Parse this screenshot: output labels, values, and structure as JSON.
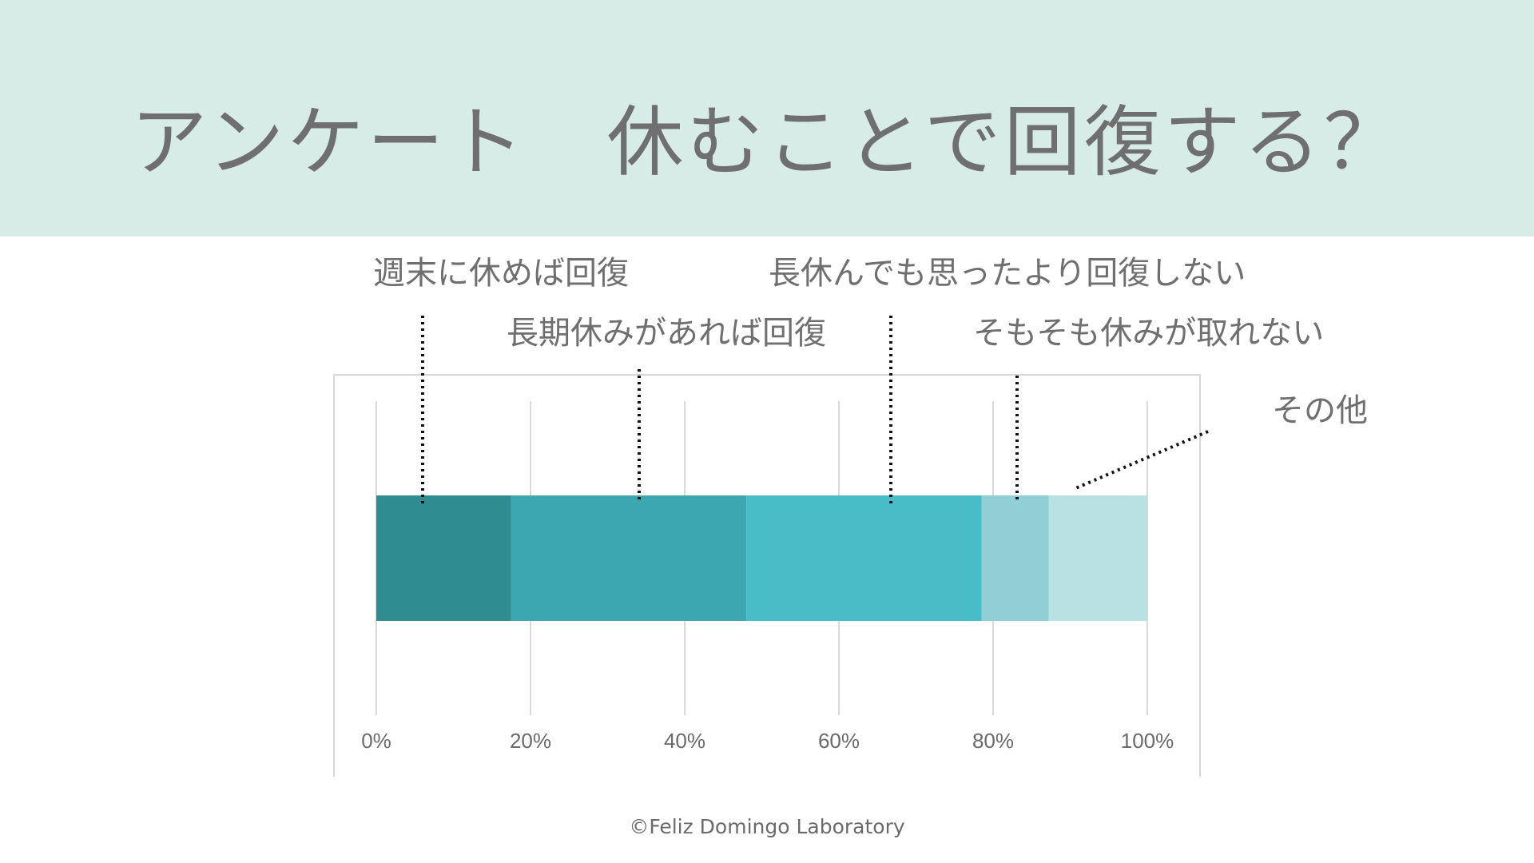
{
  "title": "アンケート　休むことで回復する？",
  "footer": "©Feliz Domingo Laboratory",
  "chart_data": {
    "type": "bar",
    "orientation": "horizontal",
    "stacked": "percent",
    "xlim": [
      0,
      100
    ],
    "x_ticks": [
      "0%",
      "20%",
      "40%",
      "60%",
      "80%",
      "100%"
    ],
    "grid": true,
    "legend": "callout labels above the bar",
    "series": [
      {
        "name": "週末に休めば回復",
        "value": 17.5,
        "color": "#2f8d92"
      },
      {
        "name": "長期休みがあれば回復",
        "value": 30.5,
        "color": "#3ca7b0"
      },
      {
        "name": "長休んでも思ったより回復しない",
        "value": 30.5,
        "color": "#48bcc7"
      },
      {
        "name": "そもそも休みが取れない",
        "value": 8.7,
        "color": "#91cfd6"
      },
      {
        "name": "その他",
        "value": 12.8,
        "color": "#b9e0e3"
      }
    ]
  }
}
